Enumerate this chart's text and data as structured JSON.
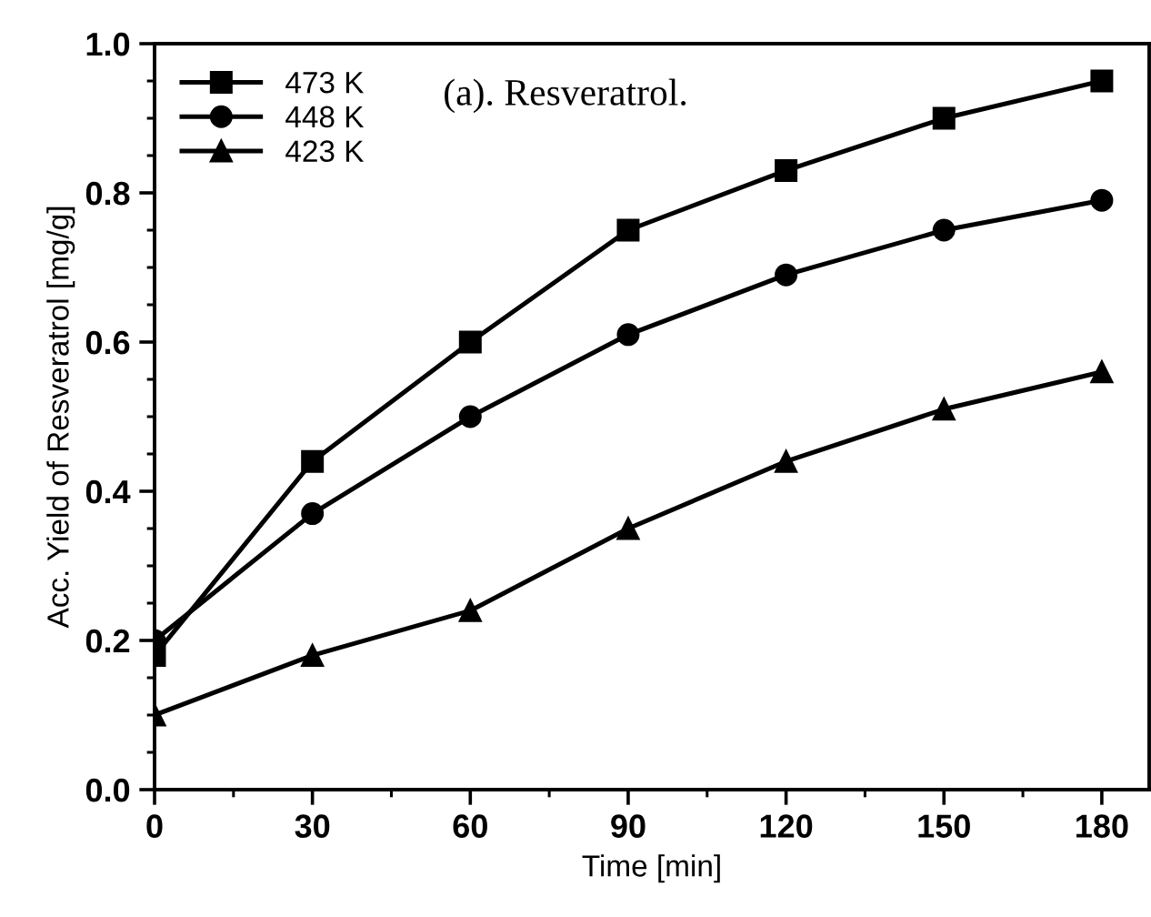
{
  "chart_data": {
    "type": "line",
    "xlabel": "Time [min]",
    "ylabel": "Acc. Yield of Resveratrol [mg/g]",
    "annotations": [
      "(a). Resveratrol."
    ],
    "x": [
      0,
      30,
      60,
      90,
      120,
      150,
      180
    ],
    "series": [
      {
        "name": "473 K",
        "color": "#000000",
        "marker": "square",
        "values": [
          0.18,
          0.44,
          0.6,
          0.75,
          0.83,
          0.9,
          0.95
        ]
      },
      {
        "name": "448 K",
        "color": "#000000",
        "marker": "circle",
        "values": [
          0.2,
          0.37,
          0.5,
          0.61,
          0.69,
          0.75,
          0.79
        ]
      },
      {
        "name": "423 K",
        "color": "#000000",
        "marker": "triangle",
        "values": [
          0.1,
          0.18,
          0.24,
          0.35,
          0.44,
          0.51,
          0.56
        ]
      }
    ],
    "xlim": [
      0,
      189
    ],
    "ylim": [
      0.0,
      1.0
    ],
    "xticks": [
      0,
      30,
      60,
      90,
      120,
      150,
      180
    ],
    "yticks": [
      {
        "value": 0.0,
        "label": "0.0"
      },
      {
        "value": 0.2,
        "label": "0.2"
      },
      {
        "value": 0.4,
        "label": "0.4"
      },
      {
        "value": 0.6,
        "label": "0.6"
      },
      {
        "value": 0.8,
        "label": "0.8"
      },
      {
        "value": 1.0,
        "label": "1.0"
      }
    ],
    "grid": false,
    "legend": "top left",
    "line_style": "solid"
  }
}
